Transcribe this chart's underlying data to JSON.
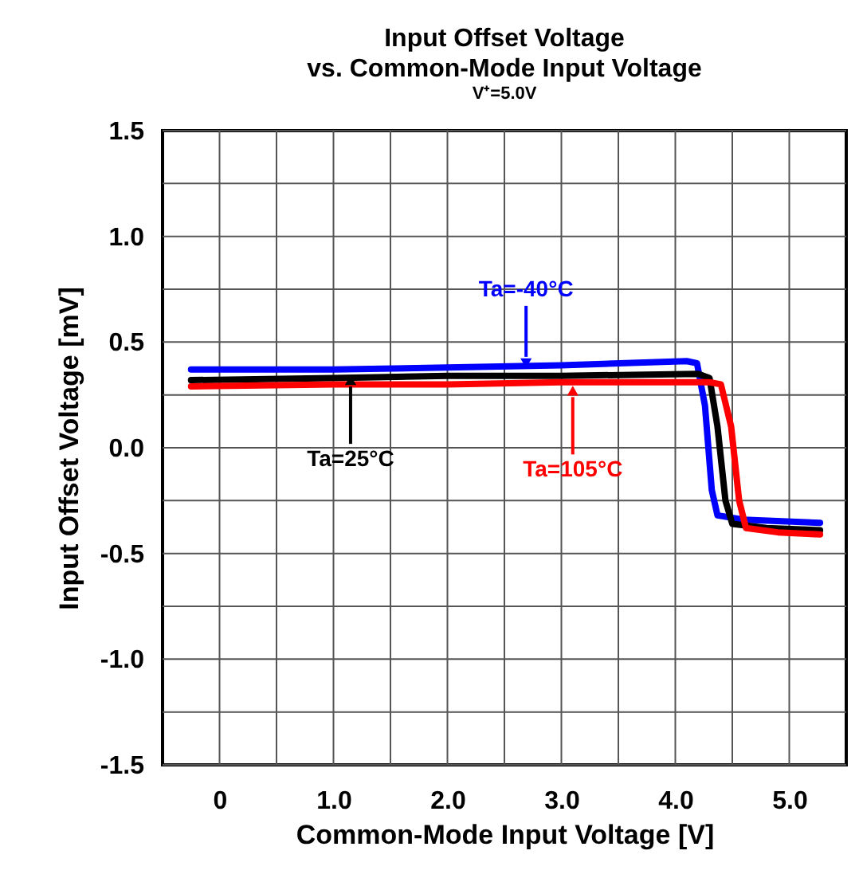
{
  "chart_data": {
    "type": "line",
    "title": "Input Offset Voltage\nvs. Common-Mode Input Voltage",
    "subtitle": "V⁺=5.0V",
    "xlabel": "Common-Mode Input Voltage [V]",
    "ylabel": "Input Offset Voltage [mV]",
    "xlim": [
      -0.5,
      5.5
    ],
    "ylim": [
      -1.5,
      1.5
    ],
    "xticks": [
      0,
      {
        "value": 0.5,
        "label": null
      },
      {
        "value": 1,
        "label": "1.0"
      },
      {
        "value": 1.5,
        "label": null
      },
      {
        "value": 2,
        "label": "2.0"
      },
      {
        "value": 2.5,
        "label": null
      },
      {
        "value": 3,
        "label": "3.0"
      },
      {
        "value": 3.5,
        "label": null
      },
      {
        "value": 4,
        "label": "4.0"
      },
      {
        "value": 4.5,
        "label": null
      },
      {
        "value": 5,
        "label": "5.0"
      }
    ],
    "yticks": [
      {
        "value": -1.5,
        "label": "-1.5"
      },
      {
        "value": -1.25,
        "label": null
      },
      {
        "value": -1,
        "label": "-1.0"
      },
      {
        "value": -0.75,
        "label": null
      },
      {
        "value": -0.5,
        "label": "-0.5"
      },
      {
        "value": -0.25,
        "label": null
      },
      {
        "value": 0,
        "label": "0.0"
      },
      {
        "value": 0.25,
        "label": null
      },
      {
        "value": 0.5,
        "label": "0.5"
      },
      {
        "value": 0.75,
        "label": null
      },
      {
        "value": 1,
        "label": "1.0"
      },
      {
        "value": 1.25,
        "label": null
      },
      {
        "value": 1.5,
        "label": "1.5"
      }
    ],
    "grid": true,
    "legend": false,
    "marker": "none",
    "line_style": "solid",
    "series": [
      {
        "color": "#0000ff",
        "x": [
          -0.25,
          1,
          2,
          3,
          4.1,
          4.19,
          4.26,
          4.32,
          4.37,
          4.6,
          5.27
        ],
        "values": [
          0.37,
          0.37,
          0.38,
          0.39,
          0.41,
          0.4,
          0.2,
          -0.2,
          -0.32,
          -0.34,
          -0.355
        ]
      },
      {
        "color": "#000000",
        "x": [
          -0.25,
          1,
          2,
          3,
          4.2,
          4.3,
          4.37,
          4.44,
          4.5,
          4.8,
          5.27
        ],
        "values": [
          0.32,
          0.33,
          0.34,
          0.34,
          0.35,
          0.33,
          0.1,
          -0.25,
          -0.36,
          -0.38,
          -0.39
        ]
      },
      {
        "color": "#ff0000",
        "x": [
          -0.25,
          1,
          2,
          3,
          4.3,
          4.4,
          4.49,
          4.56,
          4.62,
          4.9,
          5.27
        ],
        "values": [
          0.29,
          0.3,
          0.3,
          0.31,
          0.31,
          0.3,
          0.1,
          -0.25,
          -0.38,
          -0.4,
          -0.41
        ]
      }
    ],
    "annotations": [
      {
        "text": "Ta=-40°C",
        "x": 2.69,
        "y": 0.4
      },
      {
        "text": "Ta=25°C",
        "x": 1.15,
        "y": 0.32
      },
      {
        "text": "Ta=105°C",
        "x": 3.1,
        "y": 0.27
      }
    ]
  }
}
